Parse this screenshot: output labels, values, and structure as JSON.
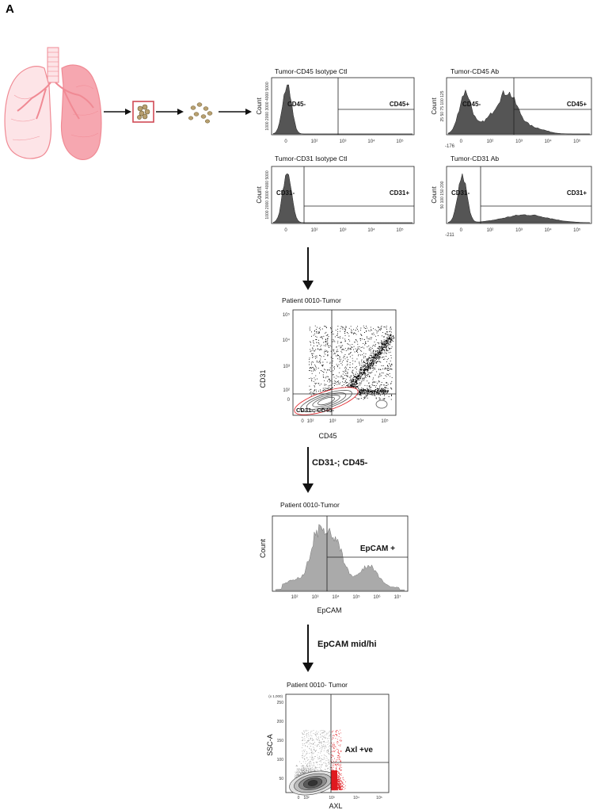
{
  "panel_label": "A",
  "colors": {
    "lung": "#f08a94",
    "lung_fill": "#fde4e7",
    "tissue_box": "#d04a55",
    "cells": "#b8a070",
    "histogram_dark": "#555555",
    "histogram_light": "#aaaaaa",
    "positive_events": "#e0191f"
  },
  "icons": [
    "lung-icon",
    "tissue-sample-icon",
    "single-cells-icon",
    "arrow-right-icon",
    "arrow-down-icon"
  ],
  "histograms": [
    {
      "title": "Tumor-CD45 Isotype Ctl",
      "ylabel": "Count",
      "yticks": "1000 2000 3000 4000 5000",
      "neg_gate": "CD45-",
      "pos_gate": "CD45+",
      "xticks": [
        "0",
        "10²",
        "10³",
        "10⁴",
        "10⁵"
      ]
    },
    {
      "title": "Tumor-CD45 Ab",
      "ylabel": "Count",
      "yticks": "25 50 75 100 125",
      "neg_gate": "CD45-",
      "pos_gate": "CD45+",
      "xmin": "-176",
      "xticks": [
        "0",
        "10²",
        "10³",
        "10⁴",
        "10⁵"
      ]
    },
    {
      "title": "Tumor-CD31 Isotype Ctl",
      "ylabel": "Count",
      "yticks": "1000 2000 3000 4000 5000",
      "neg_gate": "CD31-",
      "pos_gate": "CD31+",
      "xticks": [
        "0",
        "10²",
        "10³",
        "10⁴",
        "10⁵"
      ]
    },
    {
      "title": "Tumor-CD31 Ab",
      "ylabel": "Count",
      "yticks": "50 100 150 200",
      "neg_gate": "CD31-",
      "pos_gate": "CD31+",
      "xmin": "-211",
      "xticks": [
        "0",
        "10²",
        "10³",
        "10⁴",
        "10⁵"
      ]
    }
  ],
  "scatter_cd31_cd45": {
    "title": "Patient 0010-Tumor",
    "xlabel": "CD45",
    "ylabel": "CD31",
    "gate": "CD31-; CD45-",
    "yticks": [
      "10⁵",
      "10⁴",
      "10³",
      "10²",
      "0"
    ],
    "xticks": [
      "0",
      "10²",
      "10³",
      "10⁴",
      "10⁵"
    ]
  },
  "step1": "CD31-; CD45-",
  "epcam_hist": {
    "title": "Patient 0010-Tumor",
    "xlabel": "EpCAM",
    "ylabel": "Count",
    "gate": "EpCAM +",
    "xticks": [
      "10²",
      "10³",
      "10⁴",
      "10⁵",
      "10⁶",
      "10⁷"
    ]
  },
  "step2": "EpCAM mid/hi",
  "scatter_axl": {
    "title": "Patient 0010- Tumor",
    "xlabel": "AXL",
    "ylabel": "SSC-A",
    "gate": "Axl +ve",
    "ymult": "(x 1,000)",
    "yticks": [
      "250",
      "200",
      "150",
      "100",
      "50"
    ],
    "xticks": [
      "0",
      "10²",
      "10³",
      "10⁴",
      "10⁵"
    ]
  }
}
